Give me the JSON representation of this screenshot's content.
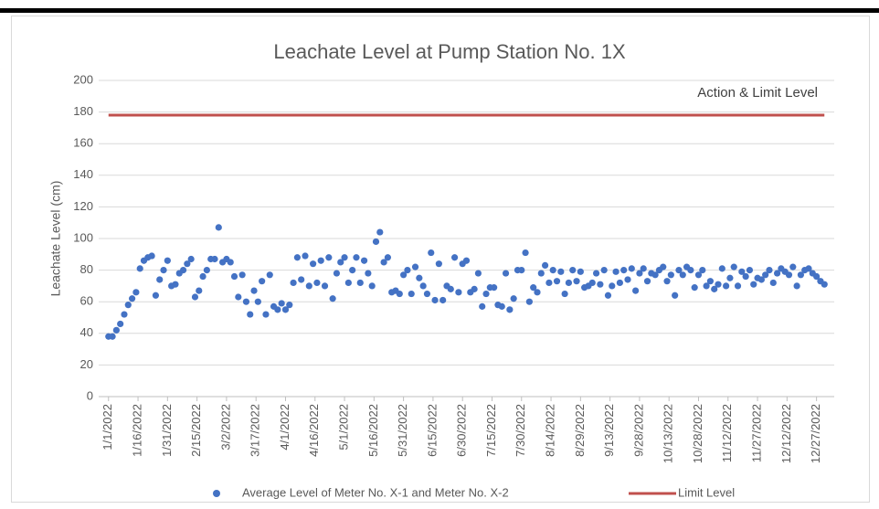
{
  "chart_data": {
    "type": "scatter",
    "title": "Leachate Level at Pump Station No. 1X",
    "y_label": "Leachate Level (cm)",
    "annotation": "Action & Limit Level",
    "grid": true,
    "legend": "bottom",
    "xlim": [
      "12/27/2021",
      "1/5/2023"
    ],
    "ylim": [
      0,
      200
    ],
    "yticks": [
      0,
      20,
      40,
      60,
      80,
      100,
      120,
      140,
      160,
      180,
      200
    ],
    "xticks": [
      "1/1/2022",
      "1/16/2022",
      "1/31/2022",
      "2/15/2022",
      "3/2/2022",
      "3/17/2022",
      "4/1/2022",
      "4/16/2022",
      "5/1/2022",
      "5/16/2022",
      "5/31/2022",
      "6/15/2022",
      "6/30/2022",
      "7/15/2022",
      "7/30/2022",
      "8/14/2022",
      "8/29/2022",
      "9/13/2022",
      "9/28/2022",
      "10/13/2022",
      "10/28/2022",
      "11/12/2022",
      "11/27/2022",
      "12/12/2022",
      "12/27/2022"
    ],
    "series": [
      {
        "name": "Average Level of Meter No. X-1 and Meter No. X-2",
        "type": "scatter",
        "color": "#4472c4",
        "x": [
          "1/1/2022",
          "1/3/2022",
          "1/5/2022",
          "1/7/2022",
          "1/9/2022",
          "1/11/2022",
          "1/13/2022",
          "1/15/2022",
          "1/17/2022",
          "1/19/2022",
          "1/21/2022",
          "1/23/2022",
          "1/25/2022",
          "1/27/2022",
          "1/29/2022",
          "1/31/2022",
          "2/2/2022",
          "2/4/2022",
          "2/6/2022",
          "2/8/2022",
          "2/10/2022",
          "2/12/2022",
          "2/14/2022",
          "2/16/2022",
          "2/18/2022",
          "2/20/2022",
          "2/22/2022",
          "2/24/2022",
          "2/26/2022",
          "2/28/2022",
          "3/2/2022",
          "3/4/2022",
          "3/6/2022",
          "3/8/2022",
          "3/10/2022",
          "3/12/2022",
          "3/14/2022",
          "3/16/2022",
          "3/18/2022",
          "3/20/2022",
          "3/22/2022",
          "3/24/2022",
          "3/26/2022",
          "3/28/2022",
          "3/30/2022",
          "4/1/2022",
          "4/3/2022",
          "4/5/2022",
          "4/7/2022",
          "4/9/2022",
          "4/11/2022",
          "4/13/2022",
          "4/15/2022",
          "4/17/2022",
          "4/19/2022",
          "4/21/2022",
          "4/23/2022",
          "4/25/2022",
          "4/27/2022",
          "4/29/2022",
          "5/1/2022",
          "5/3/2022",
          "5/5/2022",
          "5/7/2022",
          "5/9/2022",
          "5/11/2022",
          "5/13/2022",
          "5/15/2022",
          "5/17/2022",
          "5/19/2022",
          "5/21/2022",
          "5/23/2022",
          "5/25/2022",
          "5/27/2022",
          "5/29/2022",
          "5/31/2022",
          "6/2/2022",
          "6/4/2022",
          "6/6/2022",
          "6/8/2022",
          "6/10/2022",
          "6/12/2022",
          "6/14/2022",
          "6/16/2022",
          "6/18/2022",
          "6/20/2022",
          "6/22/2022",
          "6/24/2022",
          "6/26/2022",
          "6/28/2022",
          "6/30/2022",
          "7/2/2022",
          "7/4/2022",
          "7/6/2022",
          "7/8/2022",
          "7/10/2022",
          "7/12/2022",
          "7/14/2022",
          "7/16/2022",
          "7/18/2022",
          "7/20/2022",
          "7/22/2022",
          "7/24/2022",
          "7/26/2022",
          "7/28/2022",
          "7/30/2022",
          "8/1/2022",
          "8/3/2022",
          "8/5/2022",
          "8/7/2022",
          "8/9/2022",
          "8/11/2022",
          "8/13/2022",
          "8/15/2022",
          "8/17/2022",
          "8/19/2022",
          "8/21/2022",
          "8/23/2022",
          "8/25/2022",
          "8/27/2022",
          "8/29/2022",
          "8/31/2022",
          "9/2/2022",
          "9/4/2022",
          "9/6/2022",
          "9/8/2022",
          "9/10/2022",
          "9/12/2022",
          "9/14/2022",
          "9/16/2022",
          "9/18/2022",
          "9/20/2022",
          "9/22/2022",
          "9/24/2022",
          "9/26/2022",
          "9/28/2022",
          "9/30/2022",
          "10/2/2022",
          "10/4/2022",
          "10/6/2022",
          "10/8/2022",
          "10/10/2022",
          "10/12/2022",
          "10/14/2022",
          "10/16/2022",
          "10/18/2022",
          "10/20/2022",
          "10/22/2022",
          "10/24/2022",
          "10/26/2022",
          "10/28/2022",
          "10/30/2022",
          "11/1/2022",
          "11/3/2022",
          "11/5/2022",
          "11/7/2022",
          "11/9/2022",
          "11/11/2022",
          "11/13/2022",
          "11/15/2022",
          "11/17/2022",
          "11/19/2022",
          "11/21/2022",
          "11/23/2022",
          "11/25/2022",
          "11/27/2022",
          "11/29/2022",
          "12/1/2022",
          "12/3/2022",
          "12/5/2022",
          "12/7/2022",
          "12/9/2022",
          "12/11/2022",
          "12/13/2022",
          "12/15/2022",
          "12/17/2022",
          "12/19/2022",
          "12/21/2022",
          "12/23/2022",
          "12/25/2022",
          "12/27/2022",
          "12/29/2022",
          "12/31/2022"
        ],
        "values": [
          38,
          38,
          42,
          46,
          52,
          58,
          62,
          66,
          81,
          86,
          88,
          89,
          64,
          74,
          80,
          86,
          70,
          71,
          78,
          80,
          84,
          87,
          63,
          67,
          76,
          80,
          87,
          87,
          107,
          85,
          87,
          85,
          76,
          63,
          77,
          60,
          52,
          67,
          60,
          73,
          52,
          77,
          57,
          55,
          59,
          55,
          58,
          72,
          88,
          74,
          89,
          70,
          84,
          72,
          86,
          70,
          88,
          62,
          78,
          85,
          88,
          72,
          80,
          88,
          72,
          86,
          78,
          70,
          98,
          104,
          85,
          88,
          66,
          67,
          65,
          77,
          80,
          65,
          82,
          75,
          70,
          65,
          91,
          61,
          84,
          61,
          70,
          68,
          88,
          66,
          84,
          86,
          66,
          68,
          78,
          57,
          65,
          69,
          69,
          58,
          57,
          78,
          55,
          62,
          80,
          80,
          91,
          60,
          69,
          66,
          78,
          83,
          72,
          80,
          73,
          79,
          65,
          72,
          80,
          73,
          79,
          69,
          70,
          72,
          78,
          71,
          80,
          64,
          70,
          79,
          72,
          80,
          74,
          81,
          67,
          78,
          81,
          73,
          78,
          77,
          80,
          82,
          73,
          77,
          64,
          80,
          77,
          82,
          80,
          69,
          77,
          80,
          70,
          73,
          68,
          71,
          81,
          70,
          75,
          82,
          70,
          79,
          76,
          80,
          71,
          75,
          74,
          77,
          80,
          72,
          78,
          81,
          79,
          77,
          82,
          70,
          77,
          80,
          81,
          78,
          76,
          73,
          71
        ]
      },
      {
        "name": "Limit Level",
        "type": "line",
        "color": "#c0504d",
        "x": [
          "1/1/2022",
          "12/31/2022"
        ],
        "values": [
          178,
          178
        ]
      }
    ]
  }
}
